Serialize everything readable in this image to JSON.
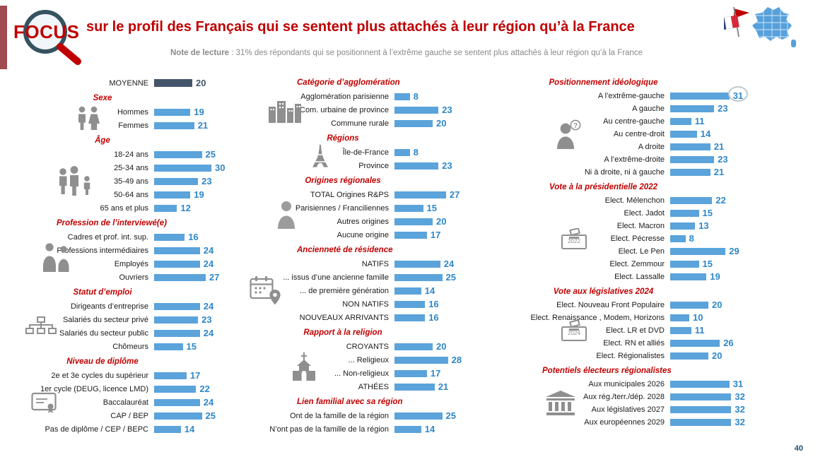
{
  "colors": {
    "accent_red": "#C00000",
    "bar_blue": "#5BA3DB",
    "value_blue": "#2E87C8",
    "average_dark": "#44546A",
    "icon_gray": "#8F8F8F",
    "note_gray": "#8A8A8A",
    "page_number_blue": "#1F4E79"
  },
  "header": {
    "logo_text": "FOCUS",
    "title": "sur le profil des Français qui se sentent plus attachés à leur région qu’à la France",
    "note_label": "Note de lecture",
    "note_text": " : 31% des répondants qui se positionnent à l’extrême gauche se sentent plus attachés à leur région qu’à la France"
  },
  "footer": {
    "page_number": "40"
  },
  "chart_data": {
    "type": "bar",
    "orientation": "horizontal",
    "unit": "%",
    "xlim": [
      0,
      35
    ],
    "columns": [
      {
        "groups": [
          {
            "title": null,
            "icon": null,
            "items": [
              {
                "label": "MOYENNE",
                "value": 20,
                "emphasis": true
              }
            ]
          },
          {
            "title": "Sexe",
            "icon": "gender-icon",
            "items": [
              {
                "label": "Hommes",
                "value": 19
              },
              {
                "label": "Femmes",
                "value": 21
              }
            ]
          },
          {
            "title": "Âge",
            "icon": "family-age-icon",
            "items": [
              {
                "label": "18-24 ans",
                "value": 25
              },
              {
                "label": "25-34 ans",
                "value": 30
              },
              {
                "label": "35-49 ans",
                "value": 23
              },
              {
                "label": "50-64 ans",
                "value": 19
              },
              {
                "label": "65 ans et plus",
                "value": 12
              }
            ]
          },
          {
            "title": "Profession de l’interviewé(e)",
            "icon": "workers-icon",
            "items": [
              {
                "label": "Cadres et prof. int. sup.",
                "value": 16
              },
              {
                "label": "Professions intermédiaires",
                "value": 24
              },
              {
                "label": "Employés",
                "value": 24
              },
              {
                "label": "Ouvriers",
                "value": 27
              }
            ]
          },
          {
            "title": "Statut d’emploi",
            "icon": "org-chart-icon",
            "items": [
              {
                "label": "Dirigeants d’entreprise",
                "value": 24
              },
              {
                "label": "Salariés du secteur privé",
                "value": 23
              },
              {
                "label": "Salariés du secteur public",
                "value": 24
              },
              {
                "label": "Chômeurs",
                "value": 15
              }
            ]
          },
          {
            "title": "Niveau de diplôme",
            "icon": "diploma-icon",
            "items": [
              {
                "label": "2e et 3e cycles du supérieur",
                "value": 17
              },
              {
                "label": "1er cycle (DEUG, licence LMD)",
                "value": 22
              },
              {
                "label": "Baccalauréat",
                "value": 24
              },
              {
                "label": "CAP / BEP",
                "value": 25
              },
              {
                "label": "Pas de diplôme / CEP / BEPC",
                "value": 14
              }
            ]
          }
        ]
      },
      {
        "groups": [
          {
            "title": "Catégorie d’agglomération",
            "icon": "city-icon",
            "items": [
              {
                "label": "Agglomération parisienne",
                "value": 8
              },
              {
                "label": "Com. urbaine de province",
                "value": 23
              },
              {
                "label": "Commune rurale",
                "value": 20
              }
            ]
          },
          {
            "title": "Régions",
            "icon": "eiffel-tower-icon",
            "items": [
              {
                "label": "Île-de-France",
                "value": 8
              },
              {
                "label": "Province",
                "value": 23
              }
            ]
          },
          {
            "title": "Origines régionales",
            "icon": "person-silhouette-icon",
            "items": [
              {
                "label": "TOTAL Origines R&PS",
                "value": 27
              },
              {
                "label": "Parisiennes / Franciliennes",
                "value": 15
              },
              {
                "label": "Autres origines",
                "value": 20
              },
              {
                "label": "Aucune origine",
                "value": 17
              }
            ]
          },
          {
            "title": "Ancienneté de résidence",
            "icon": "calendar-pin-icon",
            "items": [
              {
                "label": "NATIFS",
                "value": 24
              },
              {
                "label": "... issus d’une ancienne famille",
                "value": 25
              },
              {
                "label": "... de première génération",
                "value": 14
              },
              {
                "label": "NON NATIFS",
                "value": 16
              },
              {
                "label": "NOUVEAUX ARRIVANTS",
                "value": 16
              }
            ]
          },
          {
            "title": "Rapport à la religion",
            "icon": "church-icon",
            "items": [
              {
                "label": "CROYANTS",
                "value": 20
              },
              {
                "label": "... Religieux",
                "value": 28
              },
              {
                "label": "... Non-religieux",
                "value": 17
              },
              {
                "label": "ATHÉES",
                "value": 21
              }
            ]
          },
          {
            "title": "Lien familial avec sa région",
            "icon": null,
            "items": [
              {
                "label": "Ont de la famille de la région",
                "value": 25
              },
              {
                "label": "N’ont pas de la famille de la région",
                "value": 14
              }
            ]
          }
        ]
      },
      {
        "groups": [
          {
            "title": "Positionnement idéologique",
            "icon": "person-question-icon",
            "items": [
              {
                "label": "A l’extrême-gauche",
                "value": 31,
                "circled": true
              },
              {
                "label": "A gauche",
                "value": 23
              },
              {
                "label": "Au centre-gauche",
                "value": 11
              },
              {
                "label": "Au centre-droit",
                "value": 14
              },
              {
                "label": "A droite",
                "value": 21
              },
              {
                "label": "A l’extrême-droite",
                "value": 23
              },
              {
                "label": "Ni à droite, ni à gauche",
                "value": 21
              }
            ]
          },
          {
            "title": "Vote à la présidentielle 2022",
            "icon": "ballot-box-icon",
            "icon_label": "2022",
            "items": [
              {
                "label": "Elect. Mélenchon",
                "value": 22
              },
              {
                "label": "Elect. Jadot",
                "value": 15
              },
              {
                "label": "Elect. Macron",
                "value": 13
              },
              {
                "label": "Elect. Pécresse",
                "value": 8
              },
              {
                "label": "Elect. Le Pen",
                "value": 29
              },
              {
                "label": "Elect. Zemmour",
                "value": 15
              },
              {
                "label": "Elect. Lassalle",
                "value": 19
              }
            ]
          },
          {
            "title": "Vote aux législatives 2024",
            "icon": "ballot-box-icon",
            "icon_label": "2024",
            "items": [
              {
                "label": "Elect. Nouveau Front Populaire",
                "value": 20
              },
              {
                "label": "Elect. Renaissance , Modem, Horizons",
                "value": 10
              },
              {
                "label": "Elect. LR et DVD",
                "value": 11
              },
              {
                "label": "Elect. RN et alliés",
                "value": 26
              },
              {
                "label": "Elect. Régionalistes",
                "value": 20
              }
            ]
          },
          {
            "title": "Potentiels électeurs régionalistes",
            "icon": "government-building-icon",
            "items": [
              {
                "label": "Aux municipales 2026",
                "value": 31
              },
              {
                "label": "Aux rég./terr./dép. 2028",
                "value": 32
              },
              {
                "label": "Aux législatives 2027",
                "value": 32
              },
              {
                "label": "Aux européennes 2029",
                "value": 32
              }
            ]
          }
        ]
      }
    ]
  }
}
